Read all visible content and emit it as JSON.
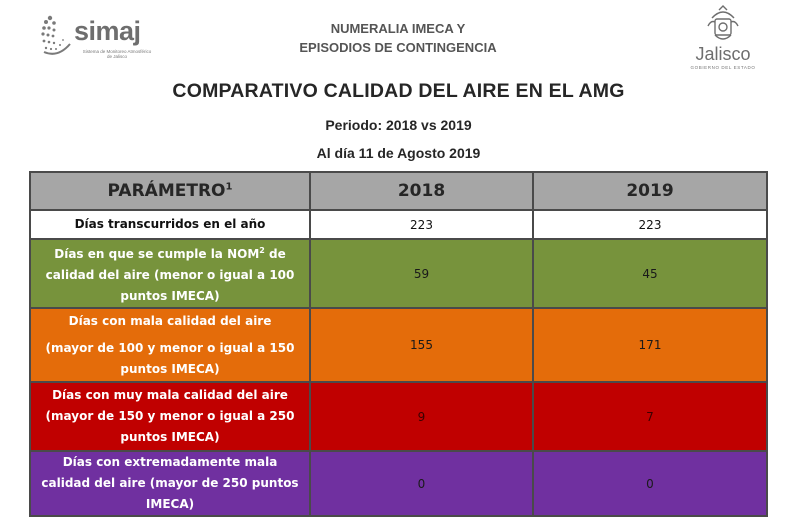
{
  "header": {
    "logo_left": {
      "word": "simaj",
      "tagline": "Sistema de Monitoreo Atmosférico de Jalisco"
    },
    "title_line1": "NUMERALIA IMECA Y",
    "title_line2": "EPISODIOS DE CONTINGENCIA",
    "logo_right": {
      "word": "Jalisco",
      "sub": "GOBIERNO DEL ESTADO"
    }
  },
  "main_title": "COMPARATIVO CALIDAD DEL AIRE EN EL AMG",
  "period": "Periodo: 2018 vs 2019",
  "as_of": "Al día 11 de Agosto 2019",
  "table": {
    "headers": {
      "param": "PARÁMETRO",
      "param_sup": "1",
      "y1": "2018",
      "y2": "2019"
    },
    "rows": [
      {
        "label": "Días transcurridos en el año",
        "v2018": "223",
        "v2019": "223"
      },
      {
        "label_a": "Días en que se cumple la NOM",
        "label_sup": "2",
        "label_b": " de calidad del aire (menor o igual a 100 puntos IMECA)",
        "v2018": "59",
        "v2019": "45"
      },
      {
        "label_a": "Días con mala calidad del aire",
        "label_b": "(mayor de 100 y menor o igual a 150 puntos IMECA)",
        "v2018": "155",
        "v2019": "171"
      },
      {
        "label": "Días con muy mala calidad del aire (mayor de 150 y menor o igual a 250 puntos IMECA)",
        "v2018": "9",
        "v2019": "7"
      },
      {
        "label": "Días con extremadamente mala calidad del aire (mayor de 250 puntos IMECA)",
        "v2018": "0",
        "v2019": "0"
      }
    ]
  },
  "colors": {
    "header_gray": "#a6a6a6",
    "green": "#77933c",
    "orange": "#e46c0a",
    "red": "#c00000",
    "purple": "#7030a0"
  }
}
